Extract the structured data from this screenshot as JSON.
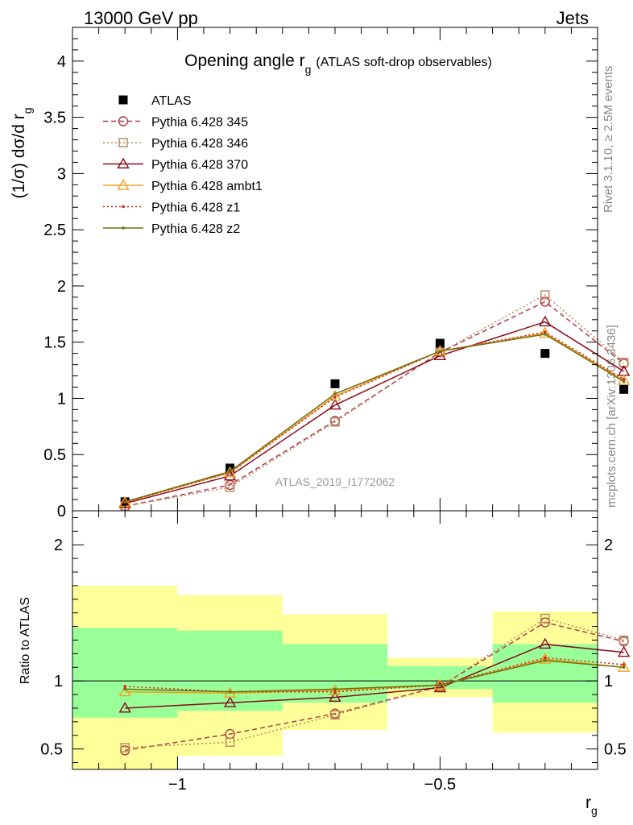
{
  "header": {
    "left": "13000 GeV pp",
    "right": "Jets"
  },
  "side_labels": {
    "rivet": "Rivet 3.1.10, ≥ 2.5M events",
    "mcplots": "mcplots.cern.ch [arXiv:1306.3436]"
  },
  "chart_data": [
    {
      "type": "line",
      "panel": "main",
      "title": "Opening angle r",
      "title_sub": "g",
      "title_suffix": "(ATLAS soft-drop observables)",
      "ylabel": "(1/σ) dσ/d r",
      "ylabel_sub": "g",
      "xlabel": "",
      "xlim": [
        -1.2,
        -0.2
      ],
      "ylim": [
        0,
        4.3
      ],
      "y_ticks": [
        "0",
        "0.5",
        "1",
        "1.5",
        "2",
        "2.5",
        "3",
        "3.5",
        "4"
      ],
      "y_tick_values": [
        0,
        0.5,
        1,
        1.5,
        2,
        2.5,
        3,
        3.5,
        4
      ],
      "grid": false,
      "legend_position": "top-left",
      "watermark": "ATLAS_2019_I1772062",
      "x": [
        -1.1,
        -0.9,
        -0.7,
        -0.5,
        -0.3,
        -0.15
      ],
      "series": [
        {
          "name": "ATLAS",
          "color": "#000000",
          "marker": "square-filled",
          "dash": "none",
          "values": [
            0.08,
            0.38,
            1.13,
            1.49,
            1.4,
            1.08
          ]
        },
        {
          "name": "Pythia 6.428 345",
          "color": "#b03a48",
          "marker": "circle-open",
          "dash": "dashed",
          "values": [
            0.04,
            0.23,
            0.8,
            1.41,
            1.86,
            1.31
          ]
        },
        {
          "name": "Pythia 6.428 346",
          "color": "#b8875a",
          "marker": "square-open",
          "dash": "dotted",
          "values": [
            0.04,
            0.21,
            0.79,
            1.41,
            1.92,
            1.32
          ]
        },
        {
          "name": "Pythia 6.428 370",
          "color": "#8b0a1a",
          "marker": "triangle-open",
          "dash": "none",
          "values": [
            0.065,
            0.31,
            0.94,
            1.38,
            1.68,
            1.24
          ]
        },
        {
          "name": "Pythia 6.428 ambt1",
          "color": "#f0a020",
          "marker": "triangle-open",
          "dash": "none",
          "values": [
            0.075,
            0.34,
            1.02,
            1.42,
            1.58,
            1.16
          ]
        },
        {
          "name": "Pythia 6.428 z1",
          "color": "#d02818",
          "marker": "dot",
          "dash": "dotted",
          "values": [
            0.075,
            0.34,
            1.01,
            1.42,
            1.59,
            1.17
          ]
        },
        {
          "name": "Pythia 6.428 z2",
          "color": "#707010",
          "marker": "dot",
          "dash": "none",
          "values": [
            0.08,
            0.35,
            1.04,
            1.42,
            1.57,
            1.15
          ]
        }
      ]
    },
    {
      "type": "line",
      "panel": "ratio",
      "ylabel": "Ratio to ATLAS",
      "xlabel": "r",
      "xlabel_sub": "g",
      "xlim": [
        -1.2,
        -0.2
      ],
      "ylim": [
        0.35,
        2.25
      ],
      "y_ticks": [
        "0.5",
        "1",
        "2"
      ],
      "y_tick_values": [
        0.5,
        1,
        2
      ],
      "x_ticks": [
        "−1",
        "−0.5"
      ],
      "x_tick_values": [
        -1,
        -0.5
      ],
      "bins": [
        [
          -1.2,
          -1.0
        ],
        [
          -1.0,
          -0.8
        ],
        [
          -0.8,
          -0.6
        ],
        [
          -0.6,
          -0.4
        ],
        [
          -0.4,
          -0.2
        ],
        [
          -0.2,
          -0.1
        ]
      ],
      "band_inner": [
        [
          0.73,
          1.39
        ],
        [
          0.78,
          1.37
        ],
        [
          0.84,
          1.27
        ],
        [
          0.94,
          1.11
        ],
        [
          0.84,
          1.27
        ],
        [
          0.83,
          1.28
        ]
      ],
      "band_outer": [
        [
          0.3,
          1.7
        ],
        [
          0.45,
          1.63
        ],
        [
          0.64,
          1.49
        ],
        [
          0.88,
          1.17
        ],
        [
          0.62,
          1.51
        ],
        [
          0.6,
          1.52
        ]
      ],
      "band_colors": {
        "inner": "#99ff99",
        "outer": "#ffff99"
      },
      "x": [
        -1.1,
        -0.9,
        -0.7,
        -0.5,
        -0.3,
        -0.15
      ],
      "series": [
        {
          "name": "Pythia 6.428 345",
          "color": "#b03a48",
          "marker": "circle-open",
          "dash": "dashed",
          "values": [
            0.49,
            0.61,
            0.76,
            0.96,
            1.43,
            1.29
          ]
        },
        {
          "name": "Pythia 6.428 346",
          "color": "#b8875a",
          "marker": "square-open",
          "dash": "dotted",
          "values": [
            0.51,
            0.55,
            0.75,
            0.96,
            1.46,
            1.3
          ]
        },
        {
          "name": "Pythia 6.428 370",
          "color": "#8b0a1a",
          "marker": "triangle-open",
          "dash": "none",
          "values": [
            0.8,
            0.84,
            0.88,
            0.95,
            1.27,
            1.21
          ]
        },
        {
          "name": "Pythia 6.428 ambt1",
          "color": "#f0a020",
          "marker": "triangle-open",
          "dash": "none",
          "values": [
            0.92,
            0.91,
            0.93,
            0.97,
            1.16,
            1.1
          ]
        },
        {
          "name": "Pythia 6.428 z1",
          "color": "#d02818",
          "marker": "dot",
          "dash": "dotted",
          "values": [
            0.96,
            0.92,
            0.92,
            0.97,
            1.17,
            1.12
          ]
        },
        {
          "name": "Pythia 6.428 z2",
          "color": "#707010",
          "marker": "dot",
          "dash": "none",
          "values": [
            0.94,
            0.92,
            0.94,
            0.97,
            1.15,
            1.1
          ]
        }
      ]
    }
  ]
}
